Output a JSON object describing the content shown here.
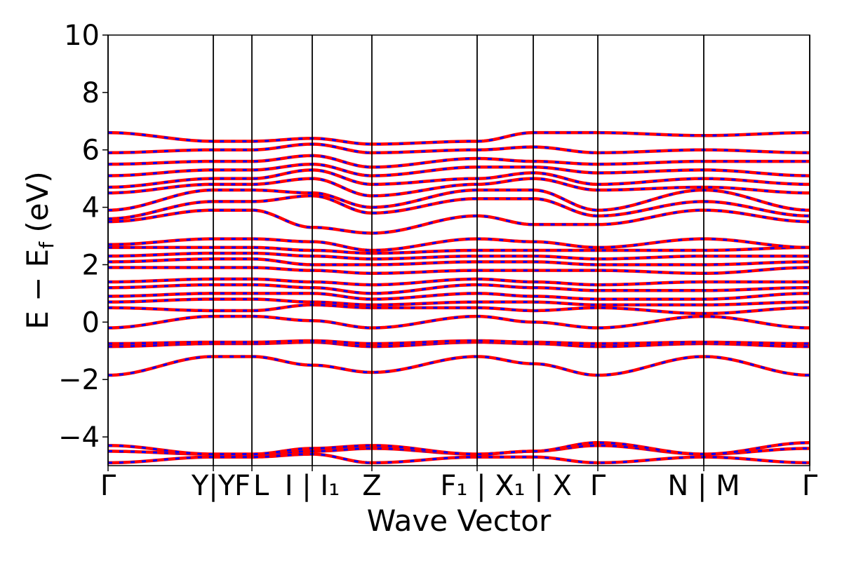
{
  "chart_data": {
    "type": "line",
    "xlabel": "Wave Vector",
    "ylabel": "E − E",
    "ylabel_sub": "f",
    "ylabel_unit": " (eV)",
    "ylim": [
      -5,
      10
    ],
    "yticks": [
      -4,
      -2,
      0,
      2,
      4,
      6,
      8,
      10
    ],
    "ytick_labels": [
      "−4",
      "−2",
      "0",
      "2",
      "4",
      "6",
      "8",
      "10"
    ],
    "xlim": [
      0,
      1
    ],
    "kpoints": [
      {
        "pos": 0.0,
        "label": "Γ"
      },
      {
        "pos": 0.15,
        "label": "Y|Y"
      },
      {
        "pos": 0.205,
        "label": "F"
      },
      {
        "pos": 0.205,
        "label": "L"
      },
      {
        "pos": 0.291,
        "label": "I | I₁"
      },
      {
        "pos": 0.376,
        "label": "Z"
      },
      {
        "pos": 0.526,
        "label": "F₁ | X"
      },
      {
        "pos": 0.606,
        "label": "X₁ | X"
      },
      {
        "pos": 0.698,
        "label": "Γ"
      },
      {
        "pos": 0.849,
        "label": "N | M"
      },
      {
        "pos": 1.0,
        "label": "Γ"
      }
    ],
    "series": [
      {
        "values_at_kpoints": [
          -4.9,
          -4.7,
          -4.7,
          -4.6,
          -4.9,
          -4.7,
          -4.7,
          -4.9,
          -4.7,
          -4.9
        ]
      },
      {
        "values_at_kpoints": [
          -4.5,
          -4.6,
          -4.6,
          -4.5,
          -4.4,
          -4.6,
          -4.5,
          -4.3,
          -4.6,
          -4.4
        ]
      },
      {
        "values_at_kpoints": [
          -4.3,
          -4.6,
          -4.6,
          -4.4,
          -4.3,
          -4.6,
          -4.5,
          -4.2,
          -4.6,
          -4.2
        ]
      },
      {
        "values_at_kpoints": [
          -1.85,
          -1.2,
          -1.2,
          -1.5,
          -1.75,
          -1.2,
          -1.45,
          -1.85,
          -1.2,
          -1.85
        ]
      },
      {
        "values_at_kpoints": [
          -0.85,
          -0.75,
          -0.75,
          -0.7,
          -0.85,
          -0.7,
          -0.75,
          -0.85,
          -0.75,
          -0.85
        ]
      },
      {
        "values_at_kpoints": [
          -0.75,
          -0.7,
          -0.7,
          -0.65,
          -0.75,
          -0.65,
          -0.7,
          -0.75,
          -0.7,
          -0.75
        ]
      },
      {
        "values_at_kpoints": [
          -0.2,
          0.2,
          0.2,
          0.05,
          -0.2,
          0.2,
          0.0,
          -0.2,
          0.2,
          -0.2
        ]
      },
      {
        "values_at_kpoints": [
          0.5,
          0.4,
          0.4,
          0.6,
          0.5,
          0.5,
          0.4,
          0.5,
          0.3,
          0.5
        ]
      },
      {
        "values_at_kpoints": [
          0.7,
          0.8,
          0.8,
          0.7,
          0.6,
          0.7,
          0.7,
          0.6,
          0.6,
          0.7
        ]
      },
      {
        "values_at_kpoints": [
          0.9,
          1.0,
          1.0,
          1.0,
          0.8,
          1.0,
          0.9,
          0.8,
          0.8,
          1.0
        ]
      },
      {
        "values_at_kpoints": [
          1.2,
          1.3,
          1.3,
          1.2,
          1.0,
          1.3,
          1.2,
          1.1,
          1.1,
          1.2
        ]
      },
      {
        "values_at_kpoints": [
          1.4,
          1.5,
          1.5,
          1.4,
          1.3,
          1.5,
          1.4,
          1.3,
          1.4,
          1.4
        ]
      },
      {
        "values_at_kpoints": [
          1.9,
          1.9,
          1.9,
          1.8,
          1.7,
          1.8,
          1.8,
          1.8,
          1.7,
          1.9
        ]
      },
      {
        "values_at_kpoints": [
          2.1,
          2.2,
          2.2,
          2.0,
          2.0,
          2.1,
          2.1,
          2.0,
          2.0,
          2.1
        ]
      },
      {
        "values_at_kpoints": [
          2.3,
          2.4,
          2.4,
          2.3,
          2.2,
          2.3,
          2.3,
          2.2,
          2.3,
          2.3
        ]
      },
      {
        "values_at_kpoints": [
          2.6,
          2.6,
          2.6,
          2.5,
          2.4,
          2.5,
          2.5,
          2.5,
          2.5,
          2.6
        ]
      },
      {
        "values_at_kpoints": [
          2.7,
          2.9,
          2.9,
          2.8,
          2.5,
          2.9,
          2.8,
          2.6,
          2.9,
          2.6
        ]
      },
      {
        "values_at_kpoints": [
          3.5,
          3.9,
          3.9,
          3.3,
          3.1,
          3.7,
          3.4,
          3.4,
          3.9,
          3.5
        ]
      },
      {
        "values_at_kpoints": [
          3.6,
          4.2,
          4.2,
          4.4,
          3.8,
          4.3,
          4.3,
          3.7,
          4.2,
          3.7
        ]
      },
      {
        "values_at_kpoints": [
          3.9,
          4.6,
          4.6,
          4.5,
          4.0,
          4.6,
          4.6,
          3.9,
          4.6,
          3.9
        ]
      },
      {
        "values_at_kpoints": [
          4.5,
          4.8,
          4.8,
          5.0,
          4.4,
          4.8,
          5.0,
          4.6,
          4.7,
          4.5
        ]
      },
      {
        "values_at_kpoints": [
          4.7,
          5.0,
          5.0,
          5.3,
          4.8,
          5.0,
          5.2,
          4.8,
          5.0,
          4.8
        ]
      },
      {
        "values_at_kpoints": [
          5.1,
          5.3,
          5.3,
          5.5,
          5.1,
          5.4,
          5.4,
          5.2,
          5.3,
          5.1
        ]
      },
      {
        "values_at_kpoints": [
          5.5,
          5.6,
          5.6,
          5.8,
          5.4,
          5.7,
          5.6,
          5.5,
          5.6,
          5.6
        ]
      },
      {
        "values_at_kpoints": [
          5.9,
          6.0,
          6.0,
          6.2,
          5.9,
          6.0,
          6.1,
          5.9,
          6.0,
          5.9
        ]
      },
      {
        "values_at_kpoints": [
          6.6,
          6.3,
          6.3,
          6.4,
          6.2,
          6.3,
          6.6,
          6.6,
          6.5,
          6.6
        ]
      }
    ]
  },
  "colors": {
    "band_red": "#ff0000",
    "band_blue": "#0000ff",
    "axes": "#000000",
    "background": "#ffffff"
  }
}
